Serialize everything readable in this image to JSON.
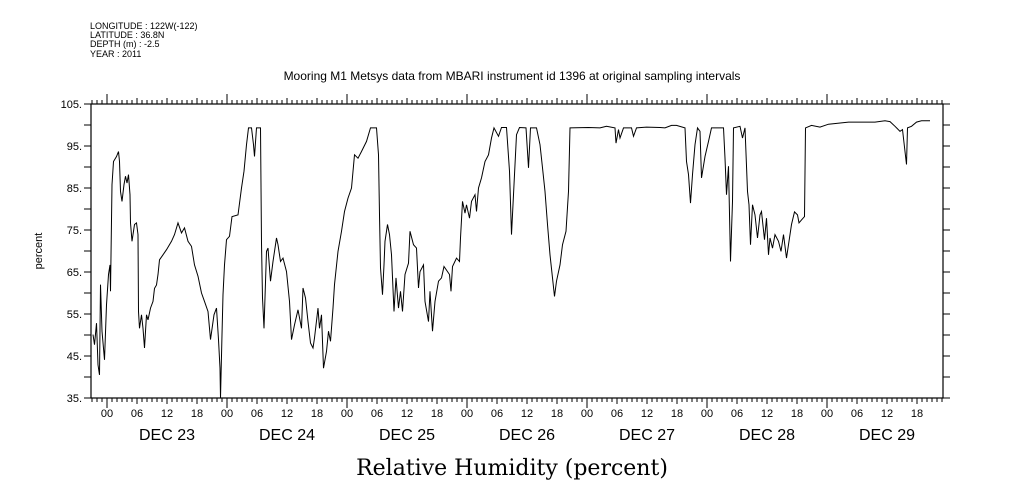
{
  "header": {
    "longitude": "LONGITUDE : 122W(-122)",
    "latitude": "LATITUDE : 36.8N",
    "depth": "DEPTH (m) : -2.5",
    "year": "YEAR : 2011"
  },
  "chart_data": {
    "type": "line",
    "title": "Mooring M1 Metsys data from MBARI instrument id 1396 at original sampling intervals",
    "xlabel": "Relative Humidity (percent)",
    "ylabel": "percent",
    "x_units": "hours since DEC 23 00:00",
    "xlim": [
      -3.2,
      167.2
    ],
    "ylim": [
      35,
      105
    ],
    "yticks": [
      35,
      45,
      55,
      65,
      75,
      85,
      95,
      105
    ],
    "ytick_labels": [
      "35.",
      "45.",
      "55.",
      "65.",
      "75.",
      "85.",
      "95.",
      "105."
    ],
    "hour_labels": [
      "00",
      "06",
      "12",
      "18"
    ],
    "day_labels": [
      "DEC 23",
      "DEC 24",
      "DEC 25",
      "DEC 26",
      "DEC 27",
      "DEC 28",
      "DEC 29"
    ],
    "grid": false,
    "series": [
      {
        "name": "Relative Humidity",
        "points": [
          [
            -2.8,
            50.1
          ],
          [
            -2.5,
            47.7
          ],
          [
            -2.1,
            52.8
          ],
          [
            -1.8,
            42.9
          ],
          [
            -1.5,
            40.5
          ],
          [
            -1.3,
            62
          ],
          [
            -1,
            50.9
          ],
          [
            -0.5,
            44.1
          ],
          [
            -0.1,
            57.2
          ],
          [
            0.3,
            64.4
          ],
          [
            0.6,
            66.7
          ],
          [
            0.7,
            60.4
          ],
          [
            1,
            85.8
          ],
          [
            1.3,
            91.3
          ],
          [
            1.9,
            92.5
          ],
          [
            2.3,
            93.7
          ],
          [
            2.5,
            91.3
          ],
          [
            2.7,
            84.2
          ],
          [
            3,
            81.8
          ],
          [
            3.4,
            85.8
          ],
          [
            3.7,
            87.8
          ],
          [
            4,
            86.2
          ],
          [
            4.3,
            88.2
          ],
          [
            4.6,
            83.4
          ],
          [
            4.7,
            76.7
          ],
          [
            5,
            72.3
          ],
          [
            5.5,
            76.3
          ],
          [
            5.9,
            76.7
          ],
          [
            6.2,
            73.9
          ],
          [
            6.3,
            55.6
          ],
          [
            6.5,
            51.6
          ],
          [
            6.9,
            54.8
          ],
          [
            7.2,
            51.6
          ],
          [
            7.5,
            46.9
          ],
          [
            7.9,
            54.8
          ],
          [
            8.2,
            53.6
          ],
          [
            8.7,
            56.4
          ],
          [
            9.2,
            58
          ],
          [
            9.5,
            61.1
          ],
          [
            9.9,
            61.9
          ],
          [
            10.2,
            64.4
          ],
          [
            10.5,
            67.9
          ],
          [
            11.2,
            69.1
          ],
          [
            11.9,
            70.3
          ],
          [
            12.9,
            72.3
          ],
          [
            13.5,
            73.9
          ],
          [
            14.2,
            76.7
          ],
          [
            14.9,
            74.3
          ],
          [
            15.5,
            75.5
          ],
          [
            16.2,
            72.3
          ],
          [
            16.9,
            71.1
          ],
          [
            17.5,
            66.7
          ],
          [
            18.2,
            64
          ],
          [
            18.9,
            60
          ],
          [
            19.5,
            58
          ],
          [
            20.2,
            55.6
          ],
          [
            20.7,
            48.9
          ],
          [
            21.4,
            54.8
          ],
          [
            21.9,
            56.4
          ],
          [
            22.3,
            48.9
          ],
          [
            22.6,
            42.1
          ],
          [
            22.7,
            35
          ],
          [
            23,
            50.1
          ],
          [
            23.2,
            59.6
          ],
          [
            23.5,
            66.7
          ],
          [
            23.9,
            72.7
          ],
          [
            24.5,
            73.5
          ],
          [
            25,
            78.2
          ],
          [
            26.2,
            78.6
          ],
          [
            26.9,
            85
          ],
          [
            27.4,
            89
          ],
          [
            27.9,
            95.3
          ],
          [
            28.3,
            99.3
          ],
          [
            28.9,
            99.3
          ],
          [
            29.3,
            95.3
          ],
          [
            29.5,
            92.5
          ],
          [
            29.9,
            99.3
          ],
          [
            30.7,
            99.3
          ],
          [
            30.9,
            71.9
          ],
          [
            31.1,
            58.8
          ],
          [
            31.4,
            51.6
          ],
          [
            31.9,
            69.9
          ],
          [
            32.2,
            70.7
          ],
          [
            32.7,
            62.8
          ],
          [
            33.2,
            67.5
          ],
          [
            33.9,
            73.1
          ],
          [
            34.2,
            71.5
          ],
          [
            34.7,
            67.5
          ],
          [
            35.2,
            68.3
          ],
          [
            35.9,
            65.1
          ],
          [
            36.5,
            58
          ],
          [
            36.9,
            48.9
          ],
          [
            37.5,
            52.4
          ],
          [
            38.2,
            56
          ],
          [
            38.9,
            51.6
          ],
          [
            39.2,
            61.2
          ],
          [
            39.7,
            58.8
          ],
          [
            40.2,
            53.2
          ],
          [
            40.7,
            48.1
          ],
          [
            41.2,
            46.9
          ],
          [
            41.5,
            49.3
          ],
          [
            42.2,
            56.4
          ],
          [
            42.5,
            51.6
          ],
          [
            42.9,
            54.8
          ],
          [
            43.3,
            42.1
          ],
          [
            43.9,
            46.1
          ],
          [
            44.3,
            50.9
          ],
          [
            44.7,
            48.5
          ],
          [
            45.2,
            56.4
          ],
          [
            45.5,
            62
          ],
          [
            46.2,
            69.9
          ],
          [
            46.9,
            74.7
          ],
          [
            47.5,
            79.4
          ],
          [
            48.2,
            82.6
          ],
          [
            48.9,
            85
          ],
          [
            49.5,
            92.9
          ],
          [
            50.2,
            92.1
          ],
          [
            50.9,
            93.7
          ],
          [
            51.9,
            96.1
          ],
          [
            52.7,
            99.3
          ],
          [
            53.9,
            99.3
          ],
          [
            54.3,
            92.9
          ],
          [
            54.5,
            78.6
          ],
          [
            54.7,
            66
          ],
          [
            55.1,
            59.6
          ],
          [
            55.4,
            66.7
          ],
          [
            55.6,
            72.3
          ],
          [
            56.1,
            76.3
          ],
          [
            56.5,
            73.9
          ],
          [
            56.9,
            69.1
          ],
          [
            57.4,
            55.6
          ],
          [
            57.8,
            63.6
          ],
          [
            58.3,
            56.4
          ],
          [
            58.7,
            60.4
          ],
          [
            59.1,
            55.6
          ],
          [
            59.6,
            64.4
          ],
          [
            60.3,
            67.1
          ],
          [
            60.6,
            74.7
          ],
          [
            61.3,
            71.5
          ],
          [
            61.9,
            70.7
          ],
          [
            62.3,
            61.2
          ],
          [
            62.6,
            65.1
          ],
          [
            63.3,
            66.7
          ],
          [
            63.6,
            58
          ],
          [
            64.3,
            53.2
          ],
          [
            64.6,
            60.4
          ],
          [
            65.1,
            50.9
          ],
          [
            65.6,
            58
          ],
          [
            66.3,
            62.8
          ],
          [
            66.9,
            63.6
          ],
          [
            67.4,
            66.3
          ],
          [
            68.5,
            64.4
          ],
          [
            68.8,
            60.4
          ],
          [
            69.1,
            66.3
          ],
          [
            69.9,
            68.3
          ],
          [
            70.5,
            67.5
          ],
          [
            70.7,
            73.1
          ],
          [
            71.1,
            81.8
          ],
          [
            71.6,
            79
          ],
          [
            71.9,
            81
          ],
          [
            72.5,
            77.8
          ],
          [
            72.9,
            81.8
          ],
          [
            73.6,
            83.4
          ],
          [
            73.9,
            79.4
          ],
          [
            74.3,
            85
          ],
          [
            74.9,
            87.4
          ],
          [
            75.6,
            91.3
          ],
          [
            76.3,
            92.9
          ],
          [
            76.9,
            96.9
          ],
          [
            77.4,
            99.3
          ],
          [
            78.3,
            97.3
          ],
          [
            78.9,
            99.4
          ],
          [
            79.9,
            99.4
          ],
          [
            80.5,
            89
          ],
          [
            80.9,
            73.9
          ],
          [
            81.4,
            85.8
          ],
          [
            81.9,
            97.7
          ],
          [
            82.5,
            99.4
          ],
          [
            83.8,
            99.3
          ],
          [
            84.3,
            89.8
          ],
          [
            84.7,
            99.3
          ],
          [
            85.9,
            99.3
          ],
          [
            86.6,
            95.3
          ],
          [
            87.1,
            89.8
          ],
          [
            87.6,
            84.2
          ],
          [
            88.1,
            76.3
          ],
          [
            88.6,
            69.1
          ],
          [
            89.1,
            63.6
          ],
          [
            89.5,
            59.2
          ],
          [
            89.9,
            62.8
          ],
          [
            90.6,
            66.7
          ],
          [
            91.1,
            71.5
          ],
          [
            91.8,
            74.7
          ],
          [
            92.3,
            84.2
          ],
          [
            92.6,
            99.3
          ],
          [
            96.3,
            99.4
          ],
          [
            98.6,
            99.3
          ],
          [
            99.9,
            99.7
          ],
          [
            101.6,
            99.3
          ],
          [
            101.8,
            95.7
          ],
          [
            102.3,
            98.9
          ],
          [
            102.6,
            96.9
          ],
          [
            103.3,
            99.3
          ],
          [
            104.9,
            99.3
          ],
          [
            105.3,
            97.3
          ],
          [
            105.9,
            99.3
          ],
          [
            107.9,
            99.5
          ],
          [
            110.6,
            99.4
          ],
          [
            111.6,
            99.3
          ],
          [
            112.9,
            99.9
          ],
          [
            113.9,
            99.9
          ],
          [
            115.6,
            99.3
          ],
          [
            115.9,
            91.3
          ],
          [
            116.3,
            88.2
          ],
          [
            116.7,
            81.4
          ],
          [
            117.1,
            88.2
          ],
          [
            117.6,
            95.3
          ],
          [
            118.1,
            99.3
          ],
          [
            118.6,
            98.5
          ],
          [
            118.9,
            87.4
          ],
          [
            119.6,
            92.5
          ],
          [
            120.3,
            96.1
          ],
          [
            120.9,
            99.3
          ],
          [
            123.3,
            99.3
          ],
          [
            123.6,
            92.1
          ],
          [
            123.9,
            83.4
          ],
          [
            124.3,
            90.2
          ],
          [
            124.7,
            67.5
          ],
          [
            125.1,
            81.8
          ],
          [
            125.3,
            99.3
          ],
          [
            126.6,
            99.7
          ],
          [
            127.1,
            96.9
          ],
          [
            127.6,
            99.3
          ],
          [
            128.1,
            84.2
          ],
          [
            128.4,
            81
          ],
          [
            128.7,
            71.5
          ],
          [
            129.1,
            81
          ],
          [
            129.6,
            78.6
          ],
          [
            130.1,
            73.1
          ],
          [
            130.6,
            78.6
          ],
          [
            130.9,
            79.4
          ],
          [
            131.5,
            72.7
          ],
          [
            131.9,
            77.8
          ],
          [
            132.3,
            69.1
          ],
          [
            132.6,
            73.1
          ],
          [
            133.1,
            70.7
          ],
          [
            133.6,
            73.9
          ],
          [
            134.3,
            72.3
          ],
          [
            134.8,
            69.9
          ],
          [
            135.3,
            73.9
          ],
          [
            135.9,
            68.3
          ],
          [
            136.4,
            72.3
          ],
          [
            136.9,
            76.3
          ],
          [
            137.5,
            79.3
          ],
          [
            138.1,
            78.6
          ],
          [
            138.4,
            76.7
          ],
          [
            138.9,
            77.4
          ],
          [
            139.5,
            78.2
          ],
          [
            139.7,
            99.3
          ],
          [
            140.9,
            99.9
          ],
          [
            142.6,
            99.5
          ],
          [
            144.3,
            100.2
          ],
          [
            148.3,
            100.7
          ],
          [
            153.6,
            100.7
          ],
          [
            155.6,
            101
          ],
          [
            156.6,
            100.8
          ],
          [
            157.6,
            99.7
          ],
          [
            158.6,
            98.5
          ],
          [
            159.1,
            98.9
          ],
          [
            159.6,
            93.7
          ],
          [
            159.9,
            90.6
          ],
          [
            160.1,
            99.3
          ],
          [
            160.9,
            99.7
          ],
          [
            161.9,
            100.7
          ],
          [
            162.9,
            101
          ],
          [
            164.6,
            101
          ]
        ]
      }
    ]
  }
}
